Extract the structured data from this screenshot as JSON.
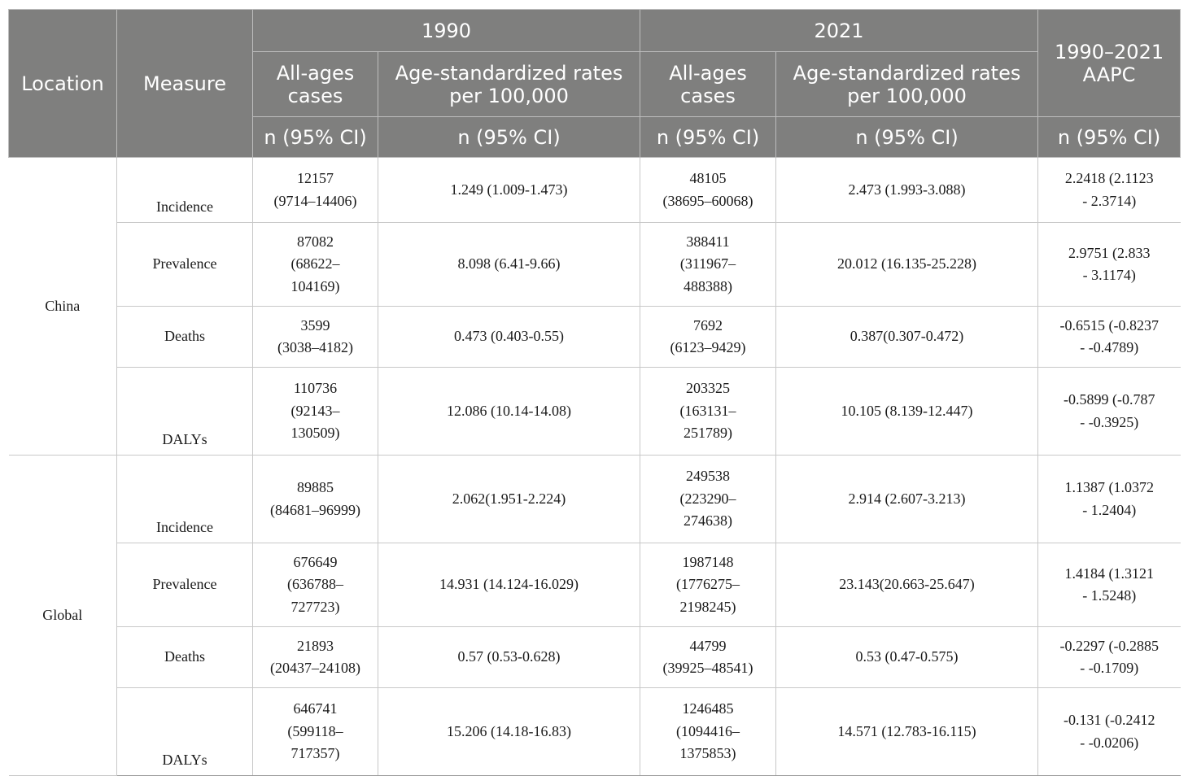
{
  "header": {
    "location": "Location",
    "measure": "Measure",
    "year_1990": "1990",
    "year_2021": "2021",
    "aapc": "1990–2021\nAAPC",
    "all_ages_cases": "All-ages\ncases",
    "age_standardized": "Age-standardized rates\nper 100,000",
    "ci": "n (95% CI)"
  },
  "rows": [
    {
      "location": "China",
      "measure": "Incidence",
      "cases_1990": "12157\n(9714–14406)",
      "asr_1990": "1.249 (1.009-1.473)",
      "cases_2021": "48105\n(38695–60068)",
      "asr_2021": "2.473 (1.993-3.088)",
      "aapc": "2.2418 (2.1123\n- 2.3714)"
    },
    {
      "measure": "Prevalence",
      "cases_1990": "87082\n(68622–\n104169)",
      "asr_1990": "8.098 (6.41-9.66)",
      "cases_2021": "388411\n(311967–\n488388)",
      "asr_2021": "20.012 (16.135-25.228)",
      "aapc": "2.9751 (2.833\n- 3.1174)"
    },
    {
      "measure": "Deaths",
      "cases_1990": "3599\n(3038–4182)",
      "asr_1990": "0.473 (0.403-0.55)",
      "cases_2021": "7692\n(6123–9429)",
      "asr_2021": "0.387(0.307-0.472)",
      "aapc": "-0.6515 (-0.8237\n- -0.4789)"
    },
    {
      "measure": "DALYs",
      "cases_1990": "110736\n(92143–\n130509)",
      "asr_1990": "12.086 (10.14-14.08)",
      "cases_2021": "203325\n(163131–\n251789)",
      "asr_2021": "10.105 (8.139-12.447)",
      "aapc": "-0.5899 (-0.787\n- -0.3925)"
    },
    {
      "location": "Global",
      "measure": "Incidence",
      "cases_1990": "89885\n(84681–96999)",
      "asr_1990": "2.062(1.951-2.224)",
      "cases_2021": "249538\n(223290–\n274638)",
      "asr_2021": "2.914 (2.607-3.213)",
      "aapc": "1.1387 (1.0372\n- 1.2404)"
    },
    {
      "measure": "Prevalence",
      "cases_1990": "676649\n(636788–\n727723)",
      "asr_1990": "14.931 (14.124-16.029)",
      "cases_2021": "1987148\n(1776275–\n2198245)",
      "asr_2021": "23.143(20.663-25.647)",
      "aapc": "1.4184 (1.3121\n- 1.5248)"
    },
    {
      "measure": "Deaths",
      "cases_1990": "21893\n(20437–24108)",
      "asr_1990": "0.57 (0.53-0.628)",
      "cases_2021": "44799\n(39925–48541)",
      "asr_2021": "0.53 (0.47-0.575)",
      "aapc": "-0.2297 (-0.2885\n- -0.1709)"
    },
    {
      "measure": "DALYs",
      "cases_1990": "646741\n(599118–\n717357)",
      "asr_1990": "15.206 (14.18-16.83)",
      "cases_2021": "1246485\n(1094416–\n1375853)",
      "asr_2021": "14.571 (12.783-16.115)",
      "aapc": "-0.131 (-0.2412\n- -0.0206)"
    }
  ]
}
